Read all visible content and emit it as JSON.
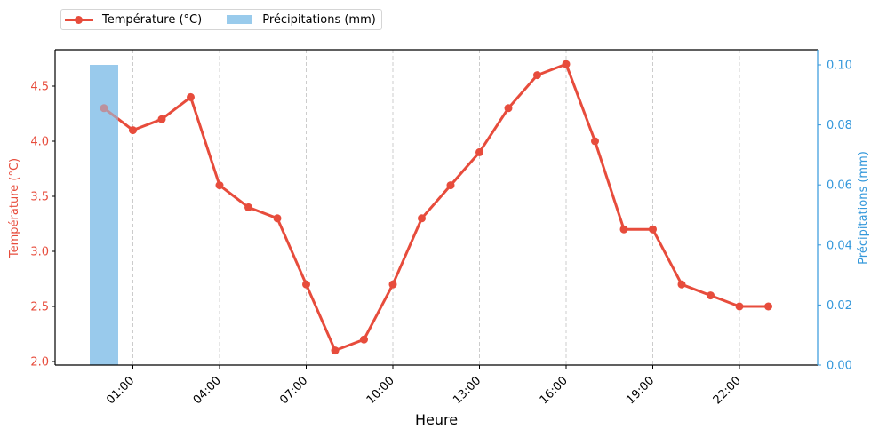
{
  "legend": {
    "items": [
      {
        "label": "Température (°C)",
        "type": "line",
        "color": "#e74c3c"
      },
      {
        "label": "Précipitations (mm)",
        "type": "bar",
        "color": "#99cbec"
      }
    ]
  },
  "axes": {
    "xlabel": "Heure",
    "ylabel_left": "Température (°C)",
    "ylabel_right": "Précipitations (mm)",
    "left_color": "#e74c3c",
    "right_color": "#3498db",
    "x_ticks": [
      "01:00",
      "04:00",
      "07:00",
      "10:00",
      "13:00",
      "16:00",
      "19:00",
      "22:00"
    ],
    "y_left_ticks": [
      "2.0",
      "2.5",
      "3.0",
      "3.5",
      "4.0",
      "4.5"
    ],
    "y_right_ticks": [
      "0.00",
      "0.02",
      "0.04",
      "0.06",
      "0.08",
      "0.10"
    ]
  },
  "chart_data": {
    "type": "line",
    "title": "",
    "xlabel": "Heure",
    "ylabel": "Température (°C)",
    "ylabel_secondary": "Précipitations (mm)",
    "x": [
      "00:00",
      "01:00",
      "02:00",
      "03:00",
      "04:00",
      "05:00",
      "06:00",
      "07:00",
      "08:00",
      "09:00",
      "10:00",
      "11:00",
      "12:00",
      "13:00",
      "14:00",
      "15:00",
      "16:00",
      "17:00",
      "18:00",
      "19:00",
      "20:00",
      "21:00",
      "22:00",
      "23:00"
    ],
    "series": [
      {
        "name": "Température (°C)",
        "type": "line",
        "axis": "left",
        "color": "#e74c3c",
        "values": [
          4.3,
          4.1,
          4.2,
          4.4,
          3.6,
          3.4,
          3.3,
          2.7,
          2.1,
          2.2,
          2.7,
          3.3,
          3.6,
          3.9,
          4.3,
          4.6,
          4.7,
          4.0,
          3.2,
          3.2,
          2.7,
          2.6,
          2.5,
          2.5
        ]
      },
      {
        "name": "Précipitations (mm)",
        "type": "bar",
        "axis": "right",
        "color": "#99cbec",
        "values": [
          0.1,
          0,
          0,
          0,
          0,
          0,
          0,
          0,
          0,
          0,
          0,
          0,
          0,
          0,
          0,
          0,
          0,
          0,
          0,
          0,
          0,
          0,
          0,
          0
        ]
      }
    ],
    "ylim": [
      1.97,
      4.83
    ],
    "ylim_secondary": [
      0,
      0.105
    ],
    "grid": "x-dashed",
    "legend_position": "top-left-outside"
  }
}
